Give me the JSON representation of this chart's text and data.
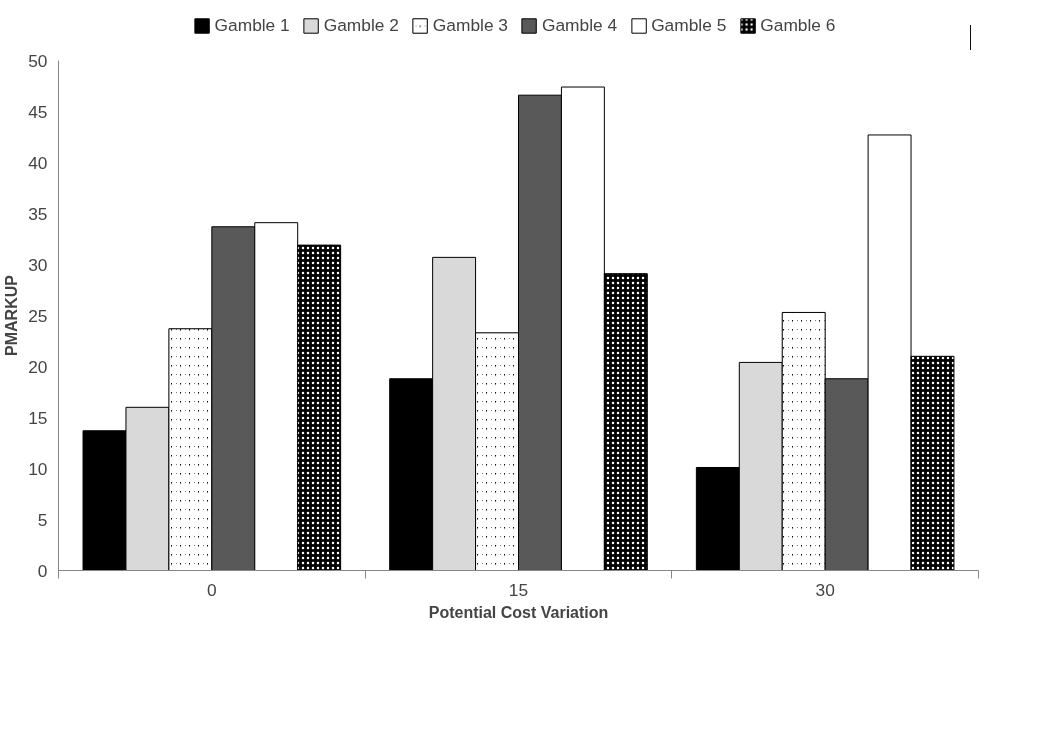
{
  "chart_data": {
    "type": "bar",
    "xlabel": "Potential Cost Variation",
    "ylabel": "PMARKUP",
    "categories": [
      "0",
      "15",
      "30"
    ],
    "series": [
      {
        "name": "Gamble 1",
        "color": "#000000",
        "values": [
          13.7,
          18.8,
          10.1
        ]
      },
      {
        "name": "Gamble 2",
        "color": "#d9d9d9",
        "values": [
          16.0,
          30.7,
          20.4
        ]
      },
      {
        "name": "Gamble 3",
        "color": "#000000",
        "values": [
          23.7,
          23.3,
          25.3
        ]
      },
      {
        "name": "Gamble 4",
        "color": "#595959",
        "values": [
          33.7,
          46.6,
          18.8
        ]
      },
      {
        "name": "Gamble 5",
        "color": "#ffffff",
        "values": [
          34.1,
          47.4,
          42.7
        ]
      },
      {
        "name": "Gamble 6",
        "color": "#000000",
        "values": [
          31.9,
          29.1,
          21.0
        ]
      }
    ],
    "ylim": [
      0,
      50
    ],
    "yticks": [
      0,
      5,
      10,
      15,
      20,
      25,
      30,
      35,
      40,
      45,
      50
    ],
    "grid": false,
    "legend": "top"
  }
}
